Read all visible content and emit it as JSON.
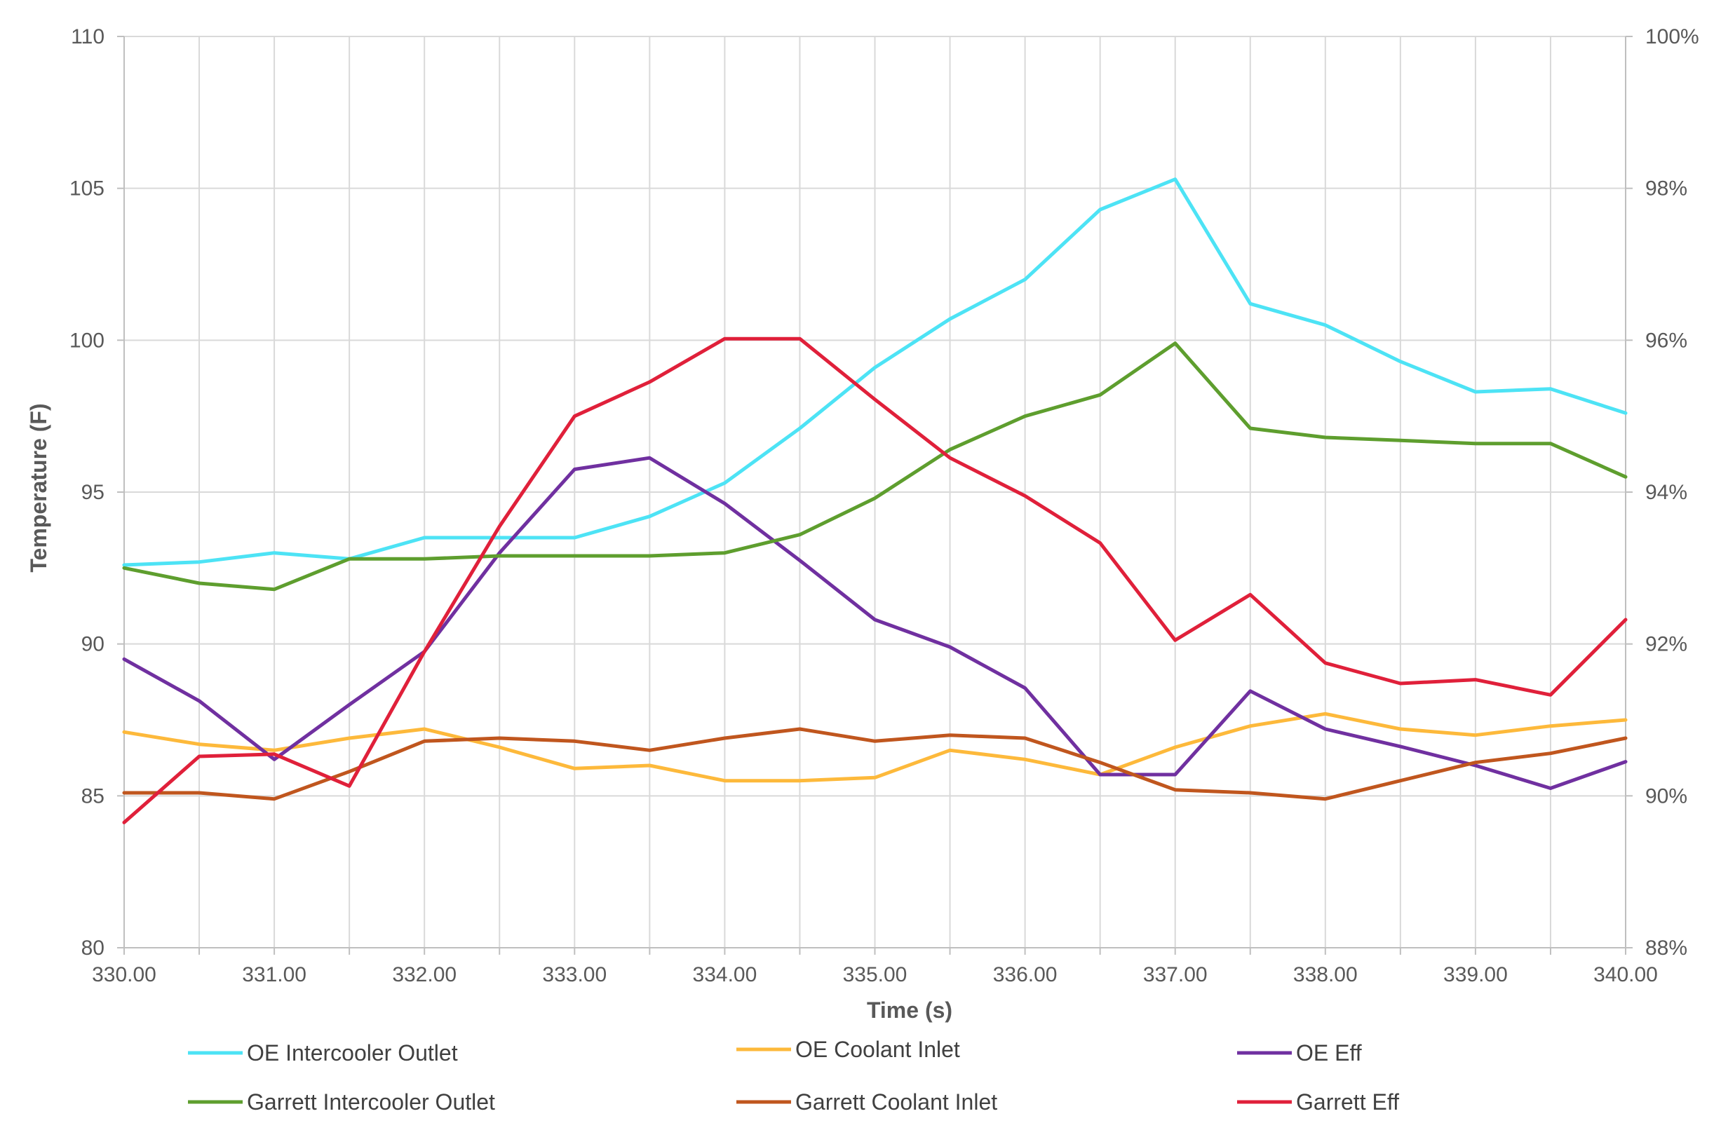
{
  "chart_data": {
    "type": "line",
    "title": "",
    "xlabel": "Time (s)",
    "ylabel": "Temperature (F)",
    "y2label": "",
    "x": [
      330.0,
      330.5,
      331.0,
      331.5,
      332.0,
      332.5,
      333.0,
      333.5,
      334.0,
      334.5,
      335.0,
      335.5,
      336.0,
      336.5,
      337.0,
      337.5,
      338.0,
      338.5,
      339.0,
      339.5,
      340.0
    ],
    "xlim": [
      330,
      340
    ],
    "ylim": [
      80,
      110
    ],
    "y2lim": [
      0.88,
      1.0
    ],
    "x_ticks": [
      "330.00",
      "331.00",
      "332.00",
      "333.00",
      "334.00",
      "335.00",
      "336.00",
      "337.00",
      "338.00",
      "339.00",
      "340.00"
    ],
    "y_ticks": [
      "80",
      "85",
      "90",
      "95",
      "100",
      "105",
      "110"
    ],
    "y2_ticks": [
      "88%",
      "90%",
      "92%",
      "94%",
      "96%",
      "98%",
      "100%"
    ],
    "grid": true,
    "legend_position": "bottom",
    "series": [
      {
        "name": "OE Intercooler Outlet",
        "axis": "left",
        "color": "#4DE3F5",
        "values": [
          92.6,
          92.7,
          93.0,
          92.8,
          93.5,
          93.5,
          93.5,
          94.2,
          95.3,
          97.1,
          99.1,
          100.7,
          102.0,
          104.3,
          105.3,
          101.2,
          100.5,
          99.3,
          98.3,
          98.4,
          97.6
        ]
      },
      {
        "name": "OE Coolant Inlet",
        "axis": "left",
        "color": "#FDB93B",
        "values": [
          87.1,
          86.7,
          86.5,
          86.9,
          87.2,
          86.6,
          85.9,
          86.0,
          85.5,
          85.5,
          85.6,
          86.5,
          86.2,
          85.7,
          86.6,
          87.3,
          87.7,
          87.2,
          87.0,
          87.3,
          87.5
        ]
      },
      {
        "name": "OE Eff",
        "axis": "right",
        "color": "#7030A0",
        "values": [
          0.918,
          0.9125,
          0.9048,
          0.912,
          0.919,
          0.932,
          0.943,
          0.9445,
          0.9385,
          0.931,
          0.9232,
          0.9196,
          0.9142,
          0.9028,
          0.9028,
          0.9138,
          0.9088,
          0.9065,
          0.904,
          0.901,
          0.9045
        ]
      },
      {
        "name": "Garrett Intercooler Outlet",
        "axis": "left",
        "color": "#5E9E2E",
        "values": [
          92.5,
          92.0,
          91.8,
          92.8,
          92.8,
          92.9,
          92.9,
          92.9,
          93.0,
          93.6,
          94.8,
          96.4,
          97.5,
          98.2,
          99.9,
          97.1,
          96.8,
          96.7,
          96.6,
          96.6,
          95.5
        ]
      },
      {
        "name": "Garrett Coolant Inlet",
        "axis": "left",
        "color": "#C0561E",
        "values": [
          85.1,
          85.1,
          84.9,
          85.8,
          86.8,
          86.9,
          86.8,
          86.5,
          86.9,
          87.2,
          86.8,
          87.0,
          86.9,
          86.1,
          85.2,
          85.1,
          84.9,
          85.5,
          86.1,
          86.4,
          86.9
        ]
      },
      {
        "name": "Garrett Eff",
        "axis": "right",
        "color": "#E0203A",
        "values": [
          0.8965,
          0.9052,
          0.9055,
          0.9013,
          0.919,
          0.9355,
          0.95,
          0.9545,
          0.9602,
          0.9602,
          0.9522,
          0.9445,
          0.9395,
          0.9333,
          0.9205,
          0.9265,
          0.9175,
          0.9148,
          0.9153,
          0.9133,
          0.9232
        ]
      }
    ]
  }
}
